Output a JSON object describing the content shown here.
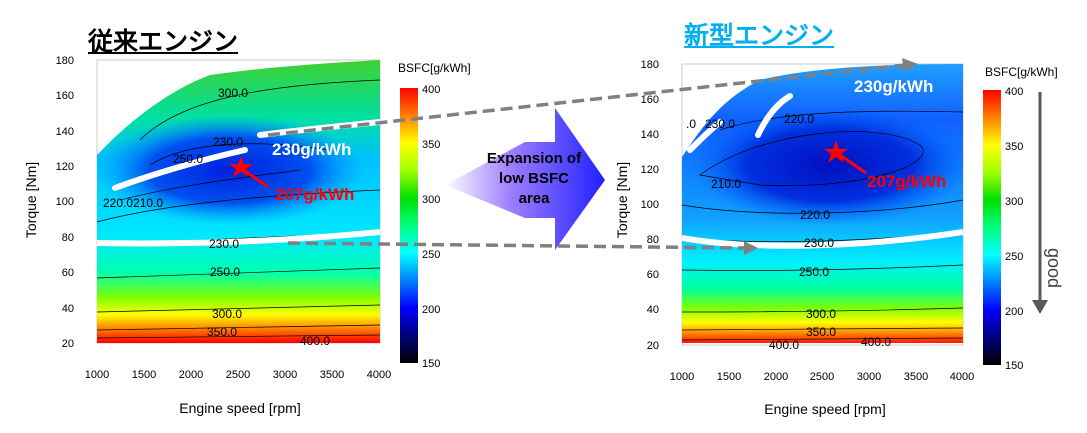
{
  "chart_data": [
    {
      "type": "heatmap",
      "title": "従来エンジン",
      "xlabel": "Engine speed [rpm]",
      "ylabel": "Torque [Nm]",
      "xlim": [
        1000,
        4000
      ],
      "ylim": [
        20,
        180
      ],
      "xticks": [
        "1000",
        "1500",
        "2000",
        "2500",
        "3000",
        "3500",
        "4000"
      ],
      "yticks": [
        "20",
        "40",
        "60",
        "80",
        "100",
        "120",
        "140",
        "160",
        "180"
      ],
      "contour_labels": [
        "300.0",
        "230.0",
        "250.0",
        "220.0210.0",
        "230.0",
        "250.0",
        "300.0",
        "350.0",
        "400.0"
      ],
      "best_point": {
        "rpm": 2550,
        "torque": 120,
        "label": "207g/kWh"
      },
      "highlight_label": "230g/kWh",
      "colorbar": {
        "title": "BSFC[g/kWh]",
        "ticks": [
          "400",
          "350",
          "300",
          "250",
          "200",
          "150"
        ],
        "range": [
          150,
          400
        ]
      }
    },
    {
      "type": "heatmap",
      "title": "新型エンジン",
      "xlabel": "Engine speed [rpm]",
      "ylabel": "Torque [Nm]",
      "xlim": [
        1000,
        4000
      ],
      "ylim": [
        20,
        180
      ],
      "xticks": [
        "1000",
        "1500",
        "2000",
        "2500",
        "3000",
        "3500",
        "4000"
      ],
      "yticks": [
        "20",
        "40",
        "60",
        "80",
        "100",
        "120",
        "140",
        "160",
        "180"
      ],
      "contour_labels": [
        ".0",
        "230.0",
        "220.0",
        "210.0",
        "220.0",
        "230.0",
        "250.0",
        "300.0",
        "350.0",
        "400.0",
        "400.0"
      ],
      "best_point": {
        "rpm": 2650,
        "torque": 129,
        "label": "207g/kWh"
      },
      "highlight_label": "230g/kWh",
      "colorbar": {
        "title": "BSFC[g/kWh]",
        "ticks": [
          "400",
          "350",
          "300",
          "250",
          "200",
          "150"
        ],
        "range": [
          150,
          400
        ]
      },
      "annotation": "good"
    }
  ],
  "center_arrow": {
    "text_lines": [
      "Expansion of",
      "low BSFC",
      "area"
    ]
  },
  "colors": {
    "title_new": "#00b0f0",
    "best_point": "#ff0000",
    "highlight": "#ffffff",
    "arrow": "#808080"
  }
}
